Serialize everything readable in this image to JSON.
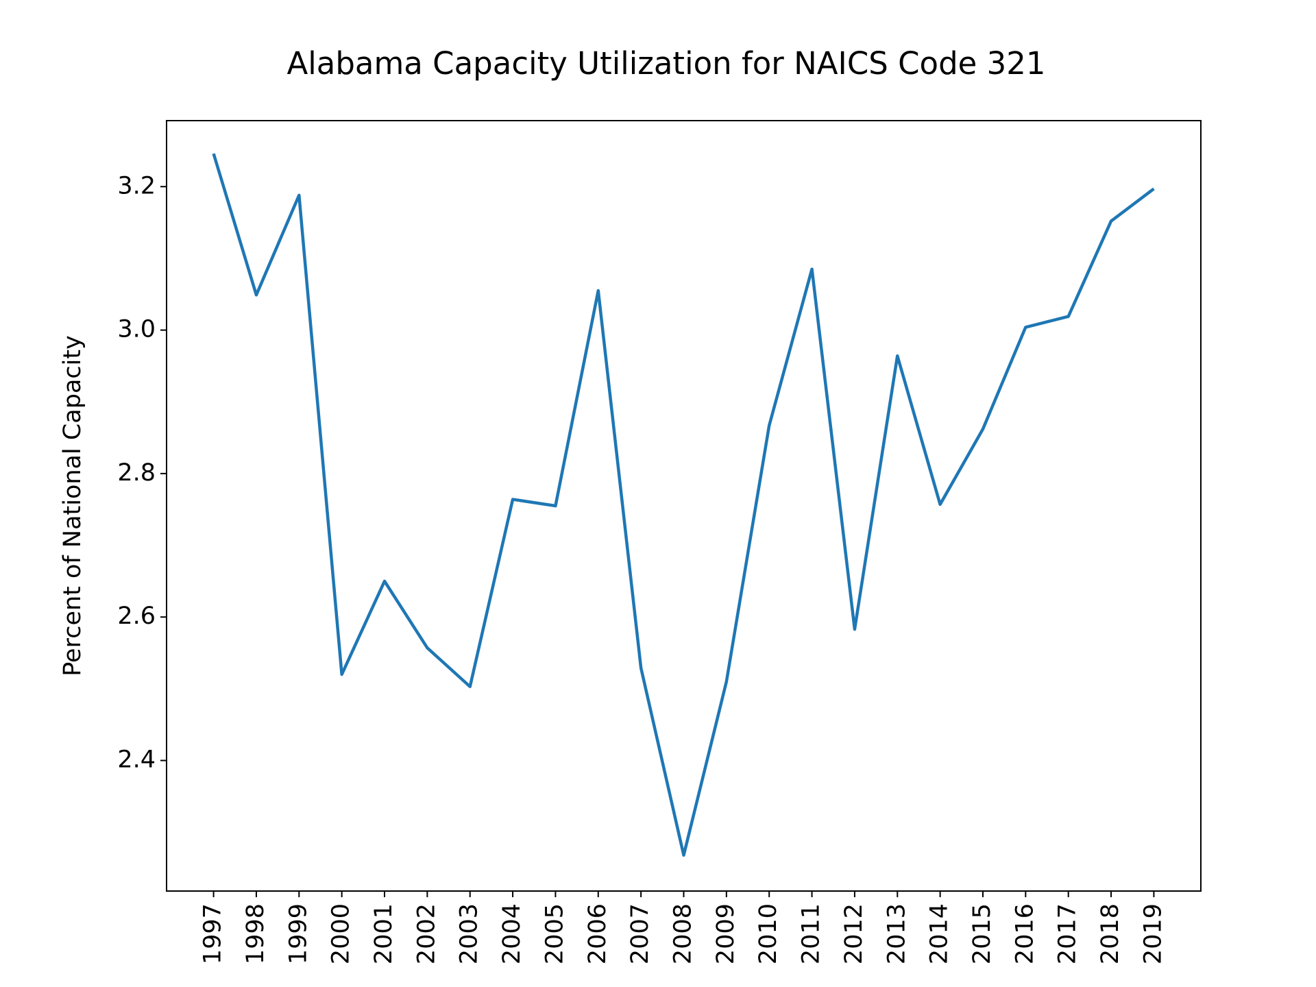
{
  "chart_data": {
    "type": "line",
    "title": "Alabama Capacity Utilization for NAICS Code 321",
    "ylabel": "Percent of National Capacity",
    "x": [
      1997,
      1998,
      1999,
      2000,
      2001,
      2002,
      2003,
      2004,
      2005,
      2006,
      2007,
      2008,
      2009,
      2010,
      2011,
      2012,
      2013,
      2014,
      2015,
      2016,
      2017,
      2018,
      2019
    ],
    "series": [
      {
        "color": "#1f77b4",
        "values": [
          3.246,
          3.049,
          3.188,
          2.52,
          2.65,
          2.557,
          2.503,
          2.764,
          2.755,
          3.055,
          2.529,
          2.268,
          2.51,
          2.867,
          3.085,
          2.583,
          2.964,
          2.757,
          2.862,
          3.004,
          3.019,
          3.152,
          3.197
        ]
      }
    ],
    "xlim": [
      1995.9,
      2020.1
    ],
    "xticks": [
      1997,
      1998,
      1999,
      2000,
      2001,
      2002,
      2003,
      2004,
      2005,
      2006,
      2007,
      2008,
      2009,
      2010,
      2011,
      2012,
      2013,
      2014,
      2015,
      2016,
      2017,
      2018,
      2019
    ],
    "ylim": [
      2.218,
      3.292
    ],
    "yticks": [
      2.4,
      2.6,
      2.8,
      3.0,
      3.2
    ]
  }
}
